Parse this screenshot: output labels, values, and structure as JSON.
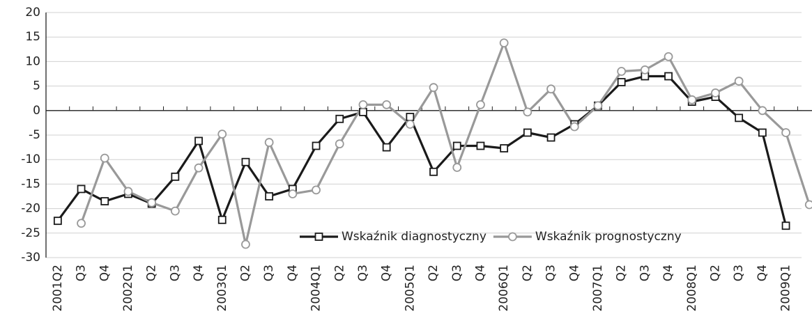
{
  "chart_data": {
    "type": "line",
    "categories": [
      "2001Q2",
      "Q3",
      "Q4",
      "2002Q1",
      "Q2",
      "Q3",
      "Q4",
      "2003Q1",
      "Q2",
      "Q3",
      "Q4",
      "2004Q1",
      "Q2",
      "Q3",
      "Q4",
      "2005Q1",
      "Q2",
      "Q3",
      "Q4",
      "2006Q1",
      "Q2",
      "Q3",
      "Q4",
      "2007Q1",
      "Q2",
      "Q3",
      "Q4",
      "2008Q1",
      "Q2",
      "Q3",
      "Q4",
      "2009Q1",
      null
    ],
    "series": [
      {
        "name": "Wskaźnik diagnostyczny",
        "color": "#1a1a1a",
        "marker": "square",
        "values": [
          -22.5,
          -16,
          -18.5,
          -17,
          -19,
          -13.5,
          -6.2,
          -22.3,
          -10.5,
          -17.5,
          -16,
          -7.2,
          -1.7,
          -0.3,
          -7.5,
          -1.3,
          -12.5,
          -7.2,
          -7.2,
          -7.7,
          -4.5,
          -5.5,
          -2.8,
          1,
          5.8,
          7,
          7,
          1.8,
          2.8,
          -1.5,
          -4.5,
          -23.5,
          null
        ]
      },
      {
        "name": "Wskaźnik prognostyczny",
        "color": "#999999",
        "marker": "circle",
        "values": [
          null,
          -23,
          -9.7,
          -16.5,
          -18.8,
          -20.5,
          -11.7,
          -4.8,
          -27.3,
          -6.5,
          -17,
          -16.2,
          -6.8,
          1.2,
          1.2,
          -2.8,
          4.7,
          -11.6,
          1.2,
          13.8,
          -0.3,
          4.4,
          -3.3,
          1,
          8,
          8.3,
          11,
          2.2,
          3.6,
          6,
          0,
          -4.5,
          -19.2
        ]
      }
    ],
    "ylim": [
      -30,
      20
    ],
    "yticks": [
      -30,
      -25,
      -20,
      -15,
      -10,
      -5,
      0,
      5,
      10,
      15,
      20
    ],
    "grid": true,
    "legend": "lower right"
  }
}
